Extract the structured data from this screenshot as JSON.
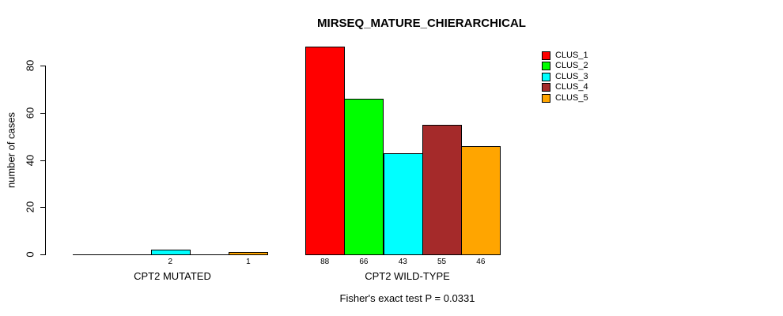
{
  "chart_data": {
    "type": "bar",
    "title": "MIRSEQ_MATURE_CHIERARCHICAL",
    "xlabel": "",
    "ylabel": "number of cases",
    "annotation": "Fisher's exact test P = 0.0331",
    "yticks": [
      0,
      20,
      40,
      60,
      80
    ],
    "ylim": [
      0,
      88
    ],
    "grid": false,
    "legend_position": "top-right",
    "bar_value_labels_shown": true,
    "categories": [
      "CPT2 MUTATED",
      "CPT2 WILD-TYPE"
    ],
    "series": [
      {
        "name": "CLUS_1",
        "color": "#FF0000",
        "values": [
          0,
          88
        ]
      },
      {
        "name": "CLUS_2",
        "color": "#00FF00",
        "values": [
          0,
          66
        ]
      },
      {
        "name": "CLUS_3",
        "color": "#00FFFF",
        "values": [
          2,
          43
        ]
      },
      {
        "name": "CLUS_4",
        "color": "#A52A2A",
        "values": [
          0,
          55
        ]
      },
      {
        "name": "CLUS_5",
        "color": "#FFA500",
        "values": [
          1,
          46
        ]
      }
    ]
  }
}
